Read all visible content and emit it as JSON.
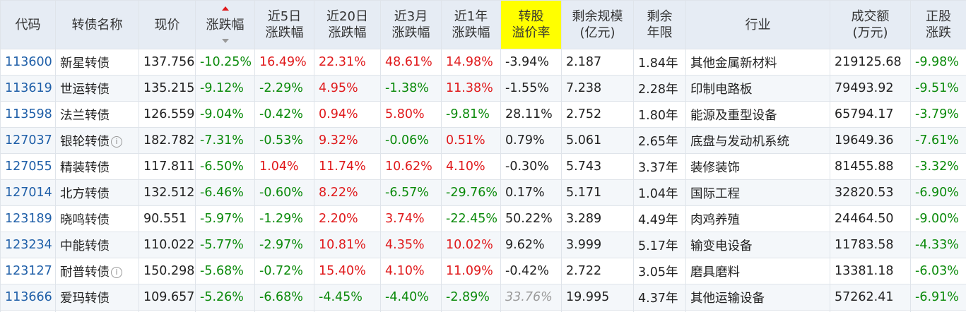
{
  "headers": [
    {
      "key": "code",
      "label": "代码"
    },
    {
      "key": "name",
      "label": "转债名称"
    },
    {
      "key": "price",
      "label": "现价"
    },
    {
      "key": "change",
      "label": "涨跌幅"
    },
    {
      "key": "chg5d",
      "label": "近5日\n涨跌幅"
    },
    {
      "key": "chg20d",
      "label": "近20日\n涨跌幅"
    },
    {
      "key": "chg3m",
      "label": "近3月\n涨跌幅"
    },
    {
      "key": "chg1y",
      "label": "近1年\n涨跌幅"
    },
    {
      "key": "premium",
      "label": "转股\n溢价率"
    },
    {
      "key": "scale",
      "label": "剩余规模\n(亿元)"
    },
    {
      "key": "years",
      "label": "剩余\n年限"
    },
    {
      "key": "industry",
      "label": "行业"
    },
    {
      "key": "turnover",
      "label": "成交额\n(万元)"
    },
    {
      "key": "stock_chg",
      "label": "正股\n涨跌"
    }
  ],
  "rows": [
    {
      "code": "113600",
      "name": "新星转债",
      "info": false,
      "price": "137.756",
      "change": "-10.25%",
      "chg5d": "16.49%",
      "chg20d": "22.31%",
      "chg3m": "48.61%",
      "chg1y": "14.98%",
      "premium": "-3.94%",
      "scale": "2.187",
      "years": "1.84年",
      "industry": "其他金属新材料",
      "turnover": "219125.68",
      "stock_chg": "-9.98%"
    },
    {
      "code": "113619",
      "name": "世运转债",
      "info": false,
      "price": "135.215",
      "change": "-9.12%",
      "chg5d": "-2.29%",
      "chg20d": "4.95%",
      "chg3m": "-1.38%",
      "chg1y": "11.38%",
      "premium": "-1.55%",
      "scale": "7.238",
      "years": "2.28年",
      "industry": "印制电路板",
      "turnover": "79493.92",
      "stock_chg": "-9.51%"
    },
    {
      "code": "113598",
      "name": "法兰转债",
      "info": false,
      "price": "126.559",
      "change": "-9.04%",
      "chg5d": "-0.42%",
      "chg20d": "0.94%",
      "chg3m": "5.80%",
      "chg1y": "-9.81%",
      "premium": "28.11%",
      "scale": "2.752",
      "years": "1.80年",
      "industry": "能源及重型设备",
      "turnover": "65794.17",
      "stock_chg": "-3.79%"
    },
    {
      "code": "127037",
      "name": "银轮转债",
      "info": true,
      "price": "182.782",
      "change": "-7.31%",
      "chg5d": "-0.53%",
      "chg20d": "9.32%",
      "chg3m": "-0.06%",
      "chg1y": "0.51%",
      "premium": "0.79%",
      "scale": "5.061",
      "years": "2.65年",
      "industry": "底盘与发动机系统",
      "turnover": "19649.36",
      "stock_chg": "-7.61%"
    },
    {
      "code": "127055",
      "name": "精装转债",
      "info": false,
      "price": "117.811",
      "change": "-6.50%",
      "chg5d": "1.04%",
      "chg20d": "11.74%",
      "chg3m": "10.62%",
      "chg1y": "4.10%",
      "premium": "-0.30%",
      "scale": "5.743",
      "years": "3.37年",
      "industry": "装修装饰",
      "turnover": "81455.88",
      "stock_chg": "-3.32%"
    },
    {
      "code": "127014",
      "name": "北方转债",
      "info": false,
      "price": "132.512",
      "change": "-6.46%",
      "chg5d": "-0.60%",
      "chg20d": "8.22%",
      "chg3m": "-6.57%",
      "chg1y": "-29.76%",
      "premium": "0.17%",
      "scale": "5.171",
      "years": "1.04年",
      "industry": "国际工程",
      "turnover": "32820.53",
      "stock_chg": "-6.90%"
    },
    {
      "code": "123189",
      "name": "晓鸣转债",
      "info": false,
      "price": "90.551",
      "change": "-5.97%",
      "chg5d": "-1.29%",
      "chg20d": "2.20%",
      "chg3m": "3.74%",
      "chg1y": "-22.45%",
      "premium": "50.22%",
      "scale": "3.289",
      "years": "4.49年",
      "industry": "肉鸡养殖",
      "turnover": "24464.50",
      "stock_chg": "-9.00%"
    },
    {
      "code": "123234",
      "name": "中能转债",
      "info": false,
      "price": "110.022",
      "change": "-5.77%",
      "chg5d": "-2.97%",
      "chg20d": "10.81%",
      "chg3m": "4.35%",
      "chg1y": "10.02%",
      "premium": "9.62%",
      "scale": "3.999",
      "years": "5.17年",
      "industry": "输变电设备",
      "turnover": "11783.58",
      "stock_chg": "-4.33%"
    },
    {
      "code": "123127",
      "name": "耐普转债",
      "info": true,
      "price": "150.298",
      "change": "-5.68%",
      "chg5d": "-0.72%",
      "chg20d": "15.40%",
      "chg3m": "4.10%",
      "chg1y": "11.09%",
      "premium": "-0.42%",
      "scale": "2.722",
      "years": "3.05年",
      "industry": "磨具磨料",
      "turnover": "13381.18",
      "stock_chg": "-6.03%"
    },
    {
      "code": "113666",
      "name": "爱玛转债",
      "info": false,
      "price": "109.657",
      "change": "-5.26%",
      "chg5d": "-6.68%",
      "chg20d": "-4.45%",
      "chg3m": "-4.40%",
      "chg1y": "-2.89%",
      "premium": "33.76%",
      "premium_dim": true,
      "scale": "19.995",
      "years": "4.37年",
      "industry": "其他运输设备",
      "turnover": "57262.41",
      "stock_chg": "-6.91%"
    }
  ],
  "colors": {
    "up": "#e0191b",
    "down": "#0a8a0a",
    "code": "#1f5fa8",
    "header_bg": "#e6ecf4",
    "highlight": "#ffff00"
  },
  "icons": {
    "sort": "sort-desc-icon",
    "info": "info-circle-icon"
  }
}
